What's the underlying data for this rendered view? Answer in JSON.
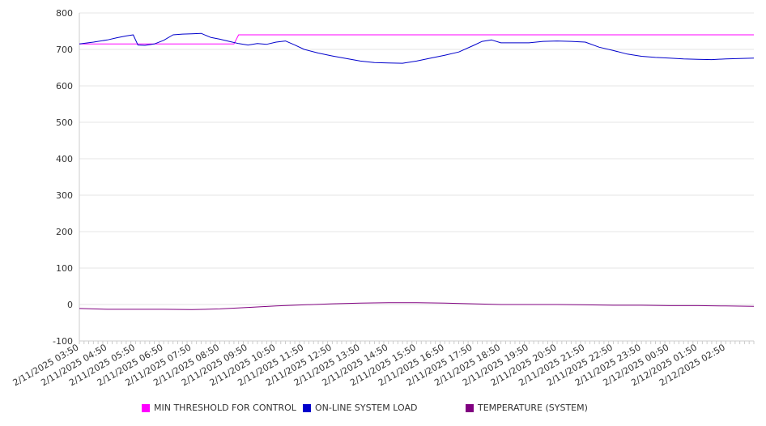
{
  "chart_data": {
    "type": "line",
    "title": "",
    "xlabel": "",
    "ylabel": "",
    "ylim": [
      -100,
      800
    ],
    "yticks": [
      800,
      700,
      600,
      500,
      400,
      300,
      200,
      100,
      0,
      -100
    ],
    "grid": true,
    "legend_position": "bottom",
    "x_tick_labels": [
      "2/11/2025 03:50",
      "2/11/2025 04:50",
      "2/11/2025 05:50",
      "2/11/2025 06:50",
      "2/11/2025 07:50",
      "2/11/2025 08:50",
      "2/11/2025 09:50",
      "2/11/2025 10:50",
      "2/11/2025 11:50",
      "2/11/2025 12:50",
      "2/11/2025 13:50",
      "2/11/2025 14:50",
      "2/11/2025 15:50",
      "2/11/2025 16:50",
      "2/11/2025 17:50",
      "2/11/2025 18:50",
      "2/11/2025 19:50",
      "2/11/2025 20:50",
      "2/11/2025 21:50",
      "2/11/2025 22:50",
      "2/11/2025 23:50",
      "2/12/2025 00:50",
      "2/12/2025 01:50",
      "2/12/2025 02:50"
    ],
    "series": [
      {
        "name": "MIN THRESHOLD FOR CONTROL",
        "color": "#ff00ff",
        "points": [
          [
            "2/11/2025 03:50",
            715
          ],
          [
            "2/11/2025 09:20",
            715
          ],
          [
            "2/11/2025 09:30",
            740
          ],
          [
            "2/12/2025 03:50",
            740
          ]
        ]
      },
      {
        "name": "ON-LINE SYSTEM LOAD",
        "color": "#0000cc",
        "points": [
          [
            "2/11/2025 03:50",
            715
          ],
          [
            "2/11/2025 04:20",
            720
          ],
          [
            "2/11/2025 04:50",
            726
          ],
          [
            "2/11/2025 05:10",
            732
          ],
          [
            "2/11/2025 05:30",
            737
          ],
          [
            "2/11/2025 05:45",
            740
          ],
          [
            "2/11/2025 05:55",
            712
          ],
          [
            "2/11/2025 06:10",
            711
          ],
          [
            "2/11/2025 06:30",
            715
          ],
          [
            "2/11/2025 06:50",
            725
          ],
          [
            "2/11/2025 07:10",
            740
          ],
          [
            "2/11/2025 07:30",
            742
          ],
          [
            "2/11/2025 07:50",
            743
          ],
          [
            "2/11/2025 08:10",
            744
          ],
          [
            "2/11/2025 08:30",
            733
          ],
          [
            "2/11/2025 08:50",
            728
          ],
          [
            "2/11/2025 09:10",
            722
          ],
          [
            "2/11/2025 09:30",
            716
          ],
          [
            "2/11/2025 09:50",
            712
          ],
          [
            "2/11/2025 10:10",
            716
          ],
          [
            "2/11/2025 10:30",
            714
          ],
          [
            "2/11/2025 10:50",
            720
          ],
          [
            "2/11/2025 11:10",
            723
          ],
          [
            "2/11/2025 11:30",
            712
          ],
          [
            "2/11/2025 11:50",
            700
          ],
          [
            "2/11/2025 12:20",
            690
          ],
          [
            "2/11/2025 12:50",
            682
          ],
          [
            "2/11/2025 13:20",
            675
          ],
          [
            "2/11/2025 13:50",
            668
          ],
          [
            "2/11/2025 14:20",
            664
          ],
          [
            "2/11/2025 14:50",
            663
          ],
          [
            "2/11/2025 15:20",
            662
          ],
          [
            "2/11/2025 15:50",
            668
          ],
          [
            "2/11/2025 16:20",
            676
          ],
          [
            "2/11/2025 16:50",
            684
          ],
          [
            "2/11/2025 17:20",
            693
          ],
          [
            "2/11/2025 17:50",
            710
          ],
          [
            "2/11/2025 18:10",
            722
          ],
          [
            "2/11/2025 18:30",
            726
          ],
          [
            "2/11/2025 18:50",
            718
          ],
          [
            "2/11/2025 19:20",
            718
          ],
          [
            "2/11/2025 19:50",
            718
          ],
          [
            "2/11/2025 20:20",
            722
          ],
          [
            "2/11/2025 20:50",
            723
          ],
          [
            "2/11/2025 21:20",
            722
          ],
          [
            "2/11/2025 21:50",
            720
          ],
          [
            "2/11/2025 22:20",
            706
          ],
          [
            "2/11/2025 22:50",
            697
          ],
          [
            "2/11/2025 23:20",
            687
          ],
          [
            "2/11/2025 23:50",
            681
          ],
          [
            "2/12/2025 00:20",
            678
          ],
          [
            "2/12/2025 00:50",
            676
          ],
          [
            "2/12/2025 01:20",
            674
          ],
          [
            "2/12/2025 01:50",
            673
          ],
          [
            "2/12/2025 02:20",
            672
          ],
          [
            "2/12/2025 02:50",
            674
          ],
          [
            "2/12/2025 03:20",
            675
          ],
          [
            "2/12/2025 03:50",
            676
          ]
        ]
      },
      {
        "name": "TEMPERATURE (SYSTEM)",
        "color": "#800080",
        "points": [
          [
            "2/11/2025 03:50",
            -11
          ],
          [
            "2/11/2025 04:50",
            -13
          ],
          [
            "2/11/2025 05:50",
            -13
          ],
          [
            "2/11/2025 06:50",
            -13
          ],
          [
            "2/11/2025 07:50",
            -14
          ],
          [
            "2/11/2025 08:50",
            -12
          ],
          [
            "2/11/2025 09:50",
            -8
          ],
          [
            "2/11/2025 10:50",
            -4
          ],
          [
            "2/11/2025 11:50",
            -1
          ],
          [
            "2/11/2025 12:50",
            2
          ],
          [
            "2/11/2025 13:50",
            4
          ],
          [
            "2/11/2025 14:50",
            5
          ],
          [
            "2/11/2025 15:50",
            5
          ],
          [
            "2/11/2025 16:50",
            4
          ],
          [
            "2/11/2025 17:50",
            2
          ],
          [
            "2/11/2025 18:50",
            0
          ],
          [
            "2/11/2025 19:50",
            0
          ],
          [
            "2/11/2025 20:50",
            0
          ],
          [
            "2/11/2025 21:50",
            -1
          ],
          [
            "2/11/2025 22:50",
            -2
          ],
          [
            "2/11/2025 23:50",
            -2
          ],
          [
            "2/12/2025 00:50",
            -3
          ],
          [
            "2/12/2025 01:50",
            -3
          ],
          [
            "2/12/2025 02:50",
            -4
          ],
          [
            "2/12/2025 03:50",
            -5
          ]
        ]
      }
    ]
  }
}
